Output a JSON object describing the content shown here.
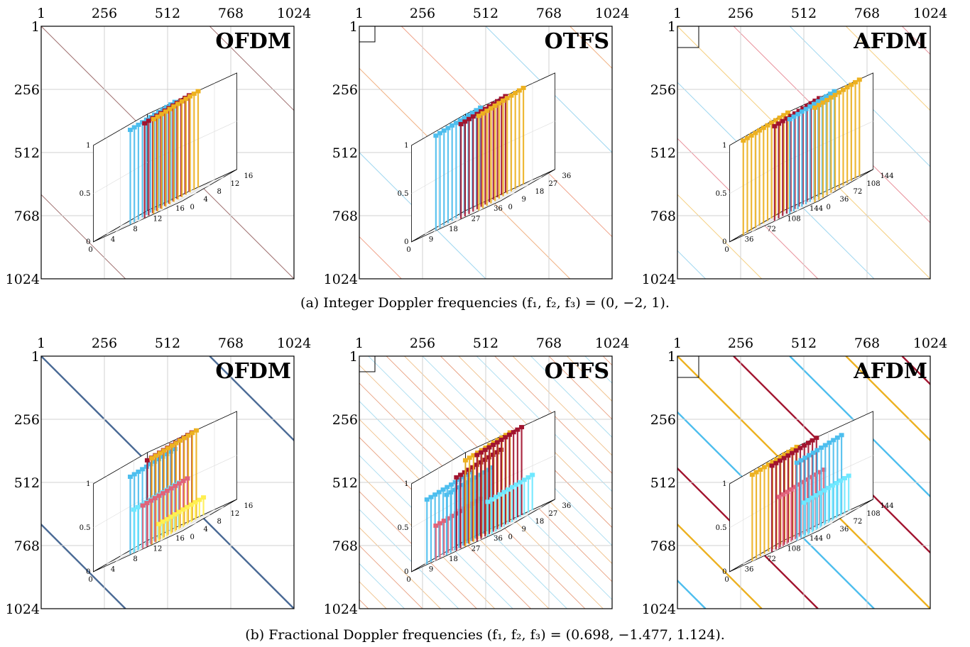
{
  "colors": {
    "dark_red": "#a2142f",
    "blue": "#4dbeee",
    "gold": "#edb120",
    "pink": "#e0637a",
    "light_cyan": "#6fe8ff",
    "yellow": "#ffef50",
    "ofdm_line": "#4a6a95",
    "grid": "#d0d0d0"
  },
  "captions": {
    "a": "(a)  Integer Doppler frequencies (f₁, f₂, f₃) = (0, −2, 1).",
    "b": "(b)  Fractional Doppler frequencies (f₁, f₂, f₃) = (0.698, −1.477, 1.124)."
  },
  "chart_data": [
    {
      "type": "heatmap",
      "row": "a",
      "waveform": "OFDM",
      "xticks": [
        "1",
        "256",
        "512",
        "768",
        "1024"
      ],
      "yticks": [
        "1",
        "256",
        "512",
        "768",
        "1024"
      ],
      "xlim": [
        1,
        1024
      ],
      "ylim": [
        1,
        1024
      ],
      "grid": true,
      "diagonals": 3,
      "inset": {
        "type": "bar3d",
        "zticks": [
          "0",
          "0.5",
          "1"
        ],
        "xticks": [
          "0",
          "4",
          "8",
          "12",
          "16"
        ],
        "yticks": [
          "0",
          "4",
          "8",
          "12",
          "16"
        ],
        "zlim": [
          0,
          1
        ],
        "series": [
          {
            "color": "#4dbeee",
            "peak": 1.0,
            "slot": 0.36
          },
          {
            "color": "#a2142f",
            "peak": 1.0,
            "slot": 0.52
          },
          {
            "color": "#edb120",
            "peak": 1.0,
            "slot": 0.62
          }
        ]
      }
    },
    {
      "type": "heatmap",
      "row": "a",
      "waveform": "OTFS",
      "xticks": [
        "1",
        "256",
        "512",
        "768",
        "1024"
      ],
      "yticks": [
        "1",
        "256",
        "512",
        "768",
        "1024"
      ],
      "xlim": [
        1,
        1024
      ],
      "ylim": [
        1,
        1024
      ],
      "grid": true,
      "diagonals": 6,
      "inset": {
        "type": "bar3d",
        "zticks": [
          "0",
          "0.5",
          "1"
        ],
        "xticks": [
          "0",
          "9",
          "18",
          "27",
          "36"
        ],
        "yticks": [
          "0",
          "9",
          "18",
          "27",
          "36"
        ],
        "zlim": [
          0,
          1
        ],
        "series": [
          {
            "color": "#4dbeee",
            "peak": 1.0,
            "slot": 0.22
          },
          {
            "color": "#a2142f",
            "peak": 1.0,
            "slot": 0.5
          },
          {
            "color": "#edb120",
            "peak": 1.0,
            "slot": 0.7
          }
        ]
      }
    },
    {
      "type": "heatmap",
      "row": "a",
      "waveform": "AFDM",
      "xticks": [
        "1",
        "256",
        "512",
        "768",
        "1024"
      ],
      "yticks": [
        "1",
        "256",
        "512",
        "768",
        "1024"
      ],
      "xlim": [
        1,
        1024
      ],
      "ylim": [
        1,
        1024
      ],
      "grid": true,
      "diagonals": 9,
      "inset": {
        "type": "bar3d",
        "zticks": [
          "0",
          "0.5",
          "1"
        ],
        "xticks": [
          "0",
          "36",
          "72",
          "108",
          "144"
        ],
        "yticks": [
          "0",
          "36",
          "72",
          "108",
          "144"
        ],
        "zlim": [
          0,
          1
        ],
        "series": [
          {
            "color": "#edb120",
            "peak": 1.0,
            "slot": 0.1
          },
          {
            "color": "#a2142f",
            "peak": 1.0,
            "slot": 0.45
          },
          {
            "color": "#4dbeee",
            "peak": 1.0,
            "slot": 0.62
          },
          {
            "color": "#edb120",
            "peak": 1.0,
            "slot": 0.9
          }
        ]
      }
    },
    {
      "type": "heatmap",
      "row": "b",
      "waveform": "OFDM",
      "xticks": [
        "1",
        "256",
        "512",
        "768",
        "1024"
      ],
      "yticks": [
        "1",
        "256",
        "512",
        "768",
        "1024"
      ],
      "xlim": [
        1,
        1024
      ],
      "ylim": [
        1,
        1024
      ],
      "grid": true,
      "diagonals": 3,
      "inset": {
        "type": "bar3d",
        "zticks": [
          "0",
          "0.5",
          "1"
        ],
        "xticks": [
          "0",
          "4",
          "8",
          "12",
          "16"
        ],
        "yticks": [
          "0",
          "4",
          "8",
          "12",
          "16"
        ],
        "zlim": [
          0,
          1
        ],
        "series": [
          {
            "color": "#4dbeee",
            "peak": 0.9,
            "slot": 0.36
          },
          {
            "color": "#a2142f",
            "peak": 1.0,
            "slot": 0.55
          },
          {
            "color": "#edb120",
            "peak": 1.0,
            "slot": 0.6
          },
          {
            "color": "#6fe8ff",
            "peak": 0.5,
            "slot": 0.4
          },
          {
            "color": "#e0637a",
            "peak": 0.5,
            "slot": 0.5
          },
          {
            "color": "#ffef50",
            "peak": 0.2,
            "slot": 0.68
          }
        ]
      }
    },
    {
      "type": "heatmap",
      "row": "b",
      "waveform": "OTFS",
      "xticks": [
        "1",
        "256",
        "512",
        "768",
        "1024"
      ],
      "yticks": [
        "1",
        "256",
        "512",
        "768",
        "1024"
      ],
      "xlim": [
        1,
        1024
      ],
      "ylim": [
        1,
        1024
      ],
      "grid": true,
      "diagonals": 28,
      "inset": {
        "type": "bar3d",
        "zticks": [
          "0",
          "0.5",
          "1"
        ],
        "xticks": [
          "0",
          "9",
          "18",
          "27",
          "36"
        ],
        "yticks": [
          "0",
          "9",
          "18",
          "27",
          "36"
        ],
        "zlim": [
          0,
          1
        ],
        "series": [
          {
            "color": "#4dbeee",
            "peak": 0.75,
            "slot": 0.12
          },
          {
            "color": "#e0637a",
            "peak": 0.4,
            "slot": 0.22
          },
          {
            "color": "#4dbeee",
            "peak": 0.7,
            "slot": 0.34
          },
          {
            "color": "#a2142f",
            "peak": 0.85,
            "slot": 0.45
          },
          {
            "color": "#edb120",
            "peak": 1.0,
            "slot": 0.55
          },
          {
            "color": "#a2142f",
            "peak": 1.0,
            "slot": 0.68
          },
          {
            "color": "#6fe8ff",
            "peak": 0.4,
            "slot": 0.8
          }
        ]
      }
    },
    {
      "type": "heatmap",
      "row": "b",
      "waveform": "AFDM",
      "xticks": [
        "1",
        "256",
        "512",
        "768",
        "1024"
      ],
      "yticks": [
        "1",
        "256",
        "512",
        "768",
        "1024"
      ],
      "xlim": [
        1,
        1024
      ],
      "ylim": [
        1,
        1024
      ],
      "grid": true,
      "diagonals": 9,
      "inset": {
        "type": "bar3d",
        "zticks": [
          "0",
          "0.5",
          "1"
        ],
        "xticks": [
          "0",
          "36",
          "72",
          "108",
          "144"
        ],
        "yticks": [
          "0",
          "36",
          "72",
          "108",
          "144"
        ],
        "zlim": [
          0,
          1
        ],
        "series": [
          {
            "color": "#edb120",
            "peak": 1.0,
            "slot": 0.2
          },
          {
            "color": "#a2142f",
            "peak": 1.0,
            "slot": 0.42
          },
          {
            "color": "#e0637a",
            "peak": 0.6,
            "slot": 0.5
          },
          {
            "color": "#4dbeee",
            "peak": 0.9,
            "slot": 0.7
          },
          {
            "color": "#6fe8ff",
            "peak": 0.4,
            "slot": 0.78
          }
        ]
      }
    }
  ]
}
